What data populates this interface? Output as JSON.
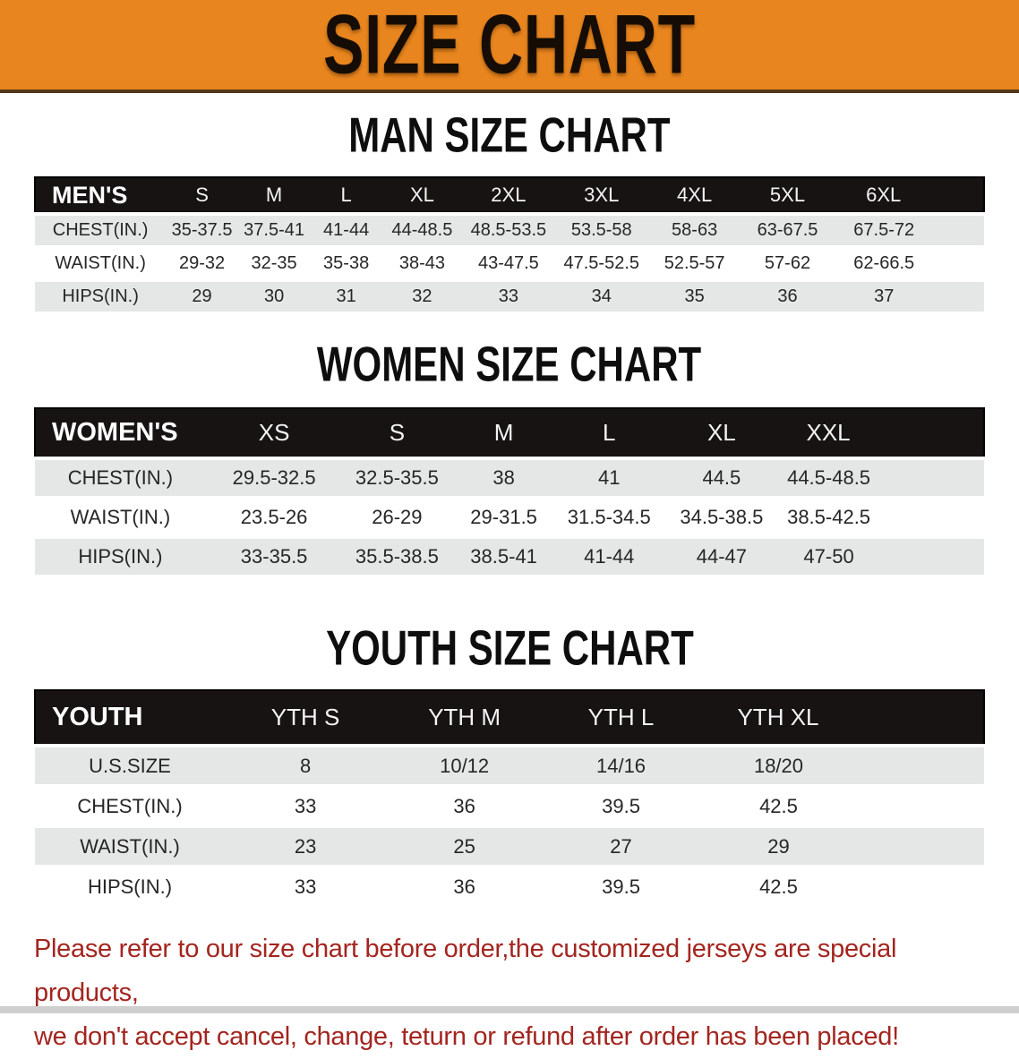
{
  "banner": {
    "title": "SIZE CHART",
    "bg_color": "#E8851E"
  },
  "sections": [
    {
      "heading": "MAN SIZE CHART",
      "table": {
        "group_label": "MEN'S",
        "sizes": [
          "S",
          "M",
          "L",
          "XL",
          "2XL",
          "3XL",
          "4XL",
          "5XL",
          "6XL"
        ],
        "rows": [
          {
            "label": "CHEST(IN.)",
            "values": [
              "35-37.5",
              "37.5-41",
              "41-44",
              "44-48.5",
              "48.5-53.5",
              "53.5-58",
              "58-63",
              "63-67.5",
              "67.5-72"
            ]
          },
          {
            "label": "WAIST(IN.)",
            "values": [
              "29-32",
              "32-35",
              "35-38",
              "38-43",
              "43-47.5",
              "47.5-52.5",
              "52.5-57",
              "57-62",
              "62-66.5"
            ]
          },
          {
            "label": "HIPS(IN.)",
            "values": [
              "29",
              "30",
              "31",
              "32",
              "33",
              "34",
              "35",
              "36",
              "37"
            ]
          }
        ]
      }
    },
    {
      "heading": "WOMEN SIZE CHART",
      "table": {
        "group_label": "WOMEN'S",
        "sizes": [
          "XS",
          "S",
          "M",
          "L",
          "XL",
          "XXL"
        ],
        "rows": [
          {
            "label": "CHEST(IN.)",
            "values": [
              "29.5-32.5",
              "32.5-35.5",
              "38",
              "41",
              "44.5",
              "44.5-48.5"
            ]
          },
          {
            "label": "WAIST(IN.)",
            "values": [
              "23.5-26",
              "26-29",
              "29-31.5",
              "31.5-34.5",
              "34.5-38.5",
              "38.5-42.5"
            ]
          },
          {
            "label": "HIPS(IN.)",
            "values": [
              "33-35.5",
              "35.5-38.5",
              "38.5-41",
              "41-44",
              "44-47",
              "47-50"
            ]
          }
        ]
      }
    },
    {
      "heading": "YOUTH SIZE CHART",
      "table": {
        "group_label": "YOUTH",
        "sizes": [
          "YTH S",
          "YTH M",
          "YTH L",
          "YTH XL"
        ],
        "rows": [
          {
            "label": "U.S.SIZE",
            "values": [
              "8",
              "10/12",
              "14/16",
              "18/20"
            ]
          },
          {
            "label": "CHEST(IN.)",
            "values": [
              "33",
              "36",
              "39.5",
              "42.5"
            ]
          },
          {
            "label": "WAIST(IN.)",
            "values": [
              "23",
              "25",
              "27",
              "29"
            ]
          },
          {
            "label": "HIPS(IN.)",
            "values": [
              "33",
              "36",
              "39.5",
              "42.5"
            ]
          }
        ]
      }
    }
  ],
  "disclaimer": {
    "line1": "Please refer to our size chart before order,the customized jerseys are special products,",
    "line2": "we don't accept cancel, change, teturn or refund after order has been placed!",
    "color": "#A3251F"
  }
}
